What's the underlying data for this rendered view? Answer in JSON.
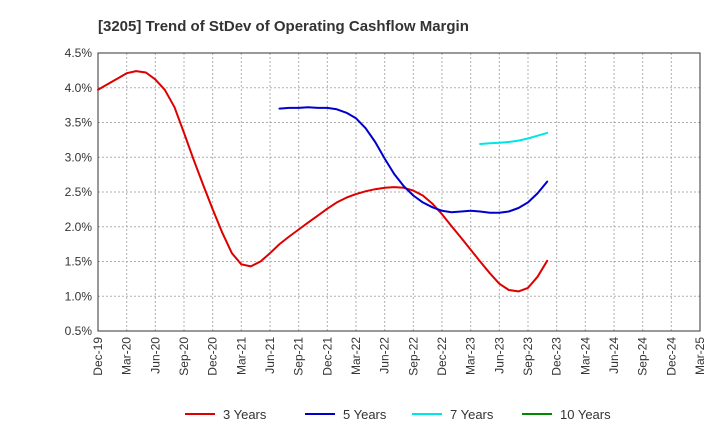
{
  "chart_data": {
    "type": "line",
    "title": "[3205]  Trend of StDev of Operating Cashflow Margin",
    "xlabel": "",
    "ylabel": "",
    "ylim": [
      0.5,
      4.5
    ],
    "yticks": [
      "0.5%",
      "1.0%",
      "1.5%",
      "2.0%",
      "2.5%",
      "3.0%",
      "3.5%",
      "4.0%",
      "4.5%"
    ],
    "yticks_values": [
      0.5,
      1.0,
      1.5,
      2.0,
      2.5,
      3.0,
      3.5,
      4.0,
      4.5
    ],
    "x_categories": [
      "Dec-19",
      "Mar-20",
      "Jun-20",
      "Sep-20",
      "Dec-20",
      "Mar-21",
      "Jun-21",
      "Sep-21",
      "Dec-21",
      "Mar-22",
      "Jun-22",
      "Sep-22",
      "Dec-22",
      "Mar-23",
      "Jun-23",
      "Sep-23",
      "Dec-23",
      "Mar-24",
      "Jun-24",
      "Sep-24",
      "Dec-24",
      "Mar-25"
    ],
    "grid": true,
    "legend_position": "bottom",
    "series": [
      {
        "name": "3 Years",
        "color": "#dd0000",
        "points": [
          [
            0,
            3.97
          ],
          [
            0.33,
            4.05
          ],
          [
            0.67,
            4.13
          ],
          [
            1,
            4.21
          ],
          [
            1.33,
            4.24
          ],
          [
            1.67,
            4.22
          ],
          [
            2,
            4.12
          ],
          [
            2.33,
            3.97
          ],
          [
            2.67,
            3.72
          ],
          [
            3,
            3.35
          ],
          [
            3.33,
            2.97
          ],
          [
            3.67,
            2.6
          ],
          [
            4,
            2.25
          ],
          [
            4.33,
            1.92
          ],
          [
            4.67,
            1.62
          ],
          [
            5,
            1.46
          ],
          [
            5.33,
            1.43
          ],
          [
            5.67,
            1.5
          ],
          [
            6,
            1.62
          ],
          [
            6.33,
            1.75
          ],
          [
            6.67,
            1.86
          ],
          [
            7,
            1.96
          ],
          [
            7.33,
            2.06
          ],
          [
            7.67,
            2.16
          ],
          [
            8,
            2.26
          ],
          [
            8.33,
            2.35
          ],
          [
            8.67,
            2.42
          ],
          [
            9,
            2.47
          ],
          [
            9.33,
            2.51
          ],
          [
            9.67,
            2.54
          ],
          [
            10,
            2.56
          ],
          [
            10.33,
            2.57
          ],
          [
            10.67,
            2.56
          ],
          [
            11,
            2.52
          ],
          [
            11.33,
            2.45
          ],
          [
            11.67,
            2.33
          ],
          [
            12,
            2.18
          ],
          [
            12.33,
            2.01
          ],
          [
            12.67,
            1.84
          ],
          [
            13,
            1.67
          ],
          [
            13.33,
            1.5
          ],
          [
            13.67,
            1.33
          ],
          [
            14,
            1.18
          ],
          [
            14.33,
            1.09
          ],
          [
            14.67,
            1.07
          ],
          [
            15,
            1.12
          ],
          [
            15.33,
            1.28
          ],
          [
            15.67,
            1.51
          ]
        ]
      },
      {
        "name": "5 Years",
        "color": "#0000cc",
        "points": [
          [
            6.33,
            3.7
          ],
          [
            6.67,
            3.71
          ],
          [
            7,
            3.71
          ],
          [
            7.33,
            3.72
          ],
          [
            7.67,
            3.71
          ],
          [
            8,
            3.71
          ],
          [
            8.33,
            3.69
          ],
          [
            8.67,
            3.64
          ],
          [
            9,
            3.56
          ],
          [
            9.33,
            3.42
          ],
          [
            9.67,
            3.22
          ],
          [
            10,
            2.98
          ],
          [
            10.33,
            2.76
          ],
          [
            10.67,
            2.58
          ],
          [
            11,
            2.45
          ],
          [
            11.33,
            2.35
          ],
          [
            11.67,
            2.28
          ],
          [
            12,
            2.23
          ],
          [
            12.33,
            2.21
          ],
          [
            12.67,
            2.22
          ],
          [
            13,
            2.23
          ],
          [
            13.33,
            2.22
          ],
          [
            13.67,
            2.2
          ],
          [
            14,
            2.2
          ],
          [
            14.33,
            2.22
          ],
          [
            14.67,
            2.27
          ],
          [
            15,
            2.35
          ],
          [
            15.33,
            2.48
          ],
          [
            15.67,
            2.65
          ]
        ]
      },
      {
        "name": "7 Years",
        "color": "#00e5e5",
        "points": [
          [
            13.33,
            3.19
          ],
          [
            13.67,
            3.2
          ],
          [
            14,
            3.21
          ],
          [
            14.33,
            3.22
          ],
          [
            14.67,
            3.24
          ],
          [
            15,
            3.27
          ],
          [
            15.33,
            3.31
          ],
          [
            15.67,
            3.35
          ]
        ]
      },
      {
        "name": "10 Years",
        "color": "#008800",
        "points": []
      }
    ]
  }
}
